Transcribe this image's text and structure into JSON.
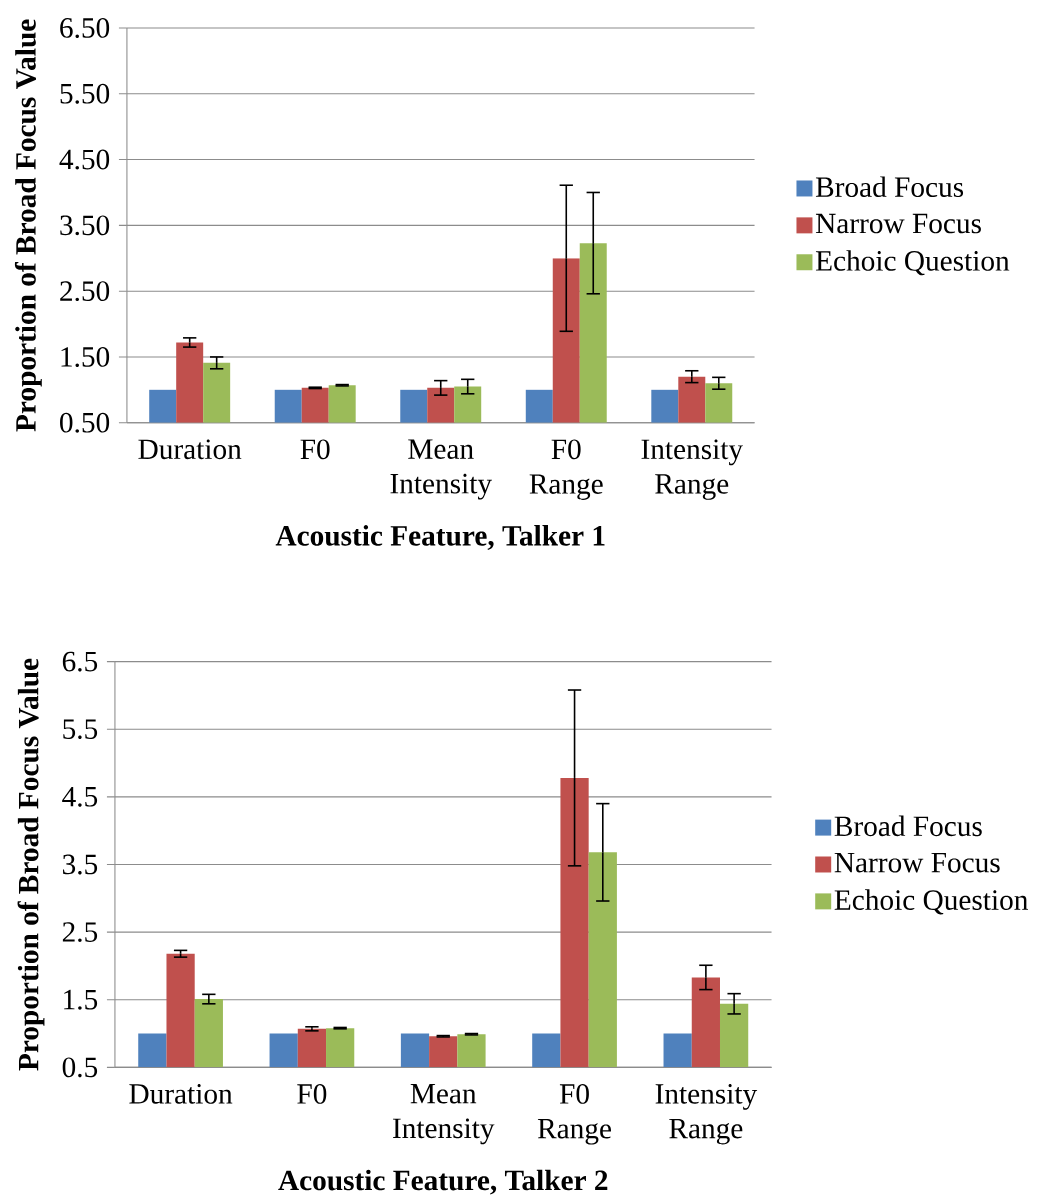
{
  "chart_data": [
    {
      "type": "bar",
      "xlabel": "Acoustic Feature, Talker 1",
      "ylabel": "Proportion of Broad Focus Value",
      "categories": [
        "Duration",
        "F0",
        "Mean Intensity",
        "F0 Range",
        "Intensity Range"
      ],
      "series": [
        {
          "name": "Broad Focus",
          "color": "#4f81bd",
          "values": [
            1.0,
            1.0,
            1.0,
            1.0,
            1.0
          ]
        },
        {
          "name": "Narrow Focus",
          "color": "#c0504d",
          "values": [
            1.72,
            1.03,
            1.03,
            3.0,
            1.2
          ],
          "errors": [
            0.07,
            0.01,
            0.11,
            1.11,
            0.09
          ]
        },
        {
          "name": "Echoic Question",
          "color": "#9bbb59",
          "values": [
            1.41,
            1.07,
            1.05,
            3.23,
            1.1
          ],
          "errors": [
            0.09,
            0.01,
            0.11,
            0.77,
            0.09
          ]
        }
      ],
      "ylim": [
        0.5,
        6.5
      ],
      "yticks": [
        {
          "value": 0.5,
          "label": "0.50"
        },
        {
          "value": 1.5,
          "label": "1.50"
        },
        {
          "value": 2.5,
          "label": "2.50"
        },
        {
          "value": 3.5,
          "label": "3.50"
        },
        {
          "value": 4.5,
          "label": "4.50"
        },
        {
          "value": 5.5,
          "label": "5.50"
        },
        {
          "value": 6.5,
          "label": "6.50"
        }
      ],
      "grid": "y",
      "legend": "right"
    },
    {
      "type": "bar",
      "xlabel": "Acoustic Feature, Talker 2",
      "ylabel": "Proportion of Broad Focus Value",
      "categories": [
        "Duration",
        "F0",
        "Mean Intensity",
        "F0 Range",
        "Intensity Range"
      ],
      "series": [
        {
          "name": "Broad Focus",
          "color": "#4f81bd",
          "values": [
            1.0,
            1.0,
            1.0,
            1.0,
            1.0
          ]
        },
        {
          "name": "Narrow Focus",
          "color": "#c0504d",
          "values": [
            2.18,
            1.07,
            0.96,
            4.78,
            1.83
          ],
          "errors": [
            0.05,
            0.03,
            0.01,
            1.3,
            0.18
          ]
        },
        {
          "name": "Echoic Question",
          "color": "#9bbb59",
          "values": [
            1.51,
            1.08,
            0.99,
            3.68,
            1.44
          ],
          "errors": [
            0.07,
            0.01,
            0.01,
            0.72,
            0.15
          ]
        }
      ],
      "ylim": [
        0.5,
        6.5
      ],
      "yticks": [
        0.5,
        1.5,
        2.5,
        3.5,
        4.5,
        5.5,
        6.5
      ],
      "grid": "y",
      "legend": "right"
    }
  ]
}
